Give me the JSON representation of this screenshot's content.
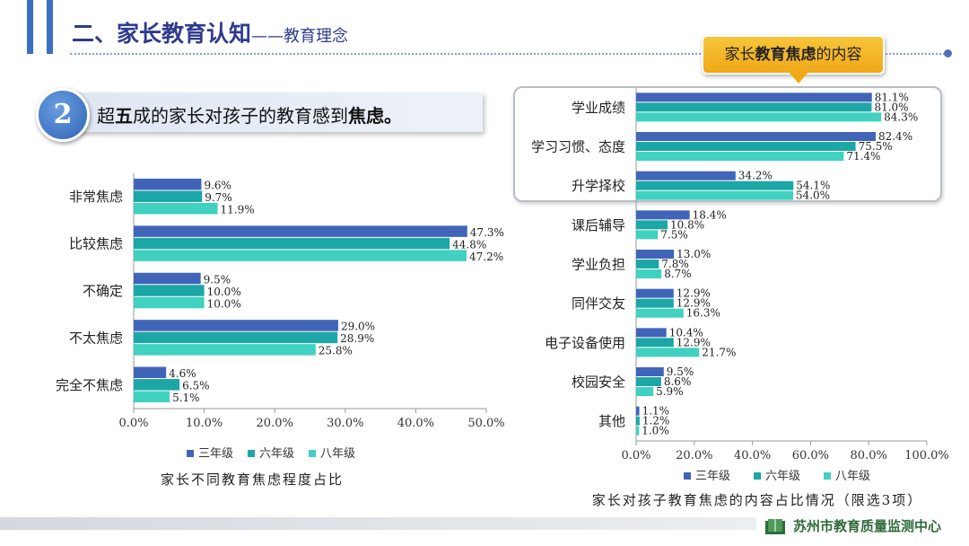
{
  "header": {
    "title_main": "二、家长教育认知",
    "title_sub": "——教育理念"
  },
  "banner": {
    "number": "2",
    "text_pre": "超",
    "text_bold1": "五",
    "text_mid": "成的家长对孩子的教育感到",
    "text_bold2": "焦虑。"
  },
  "callout": {
    "pre": "家长",
    "bold": "教育焦虑",
    "post": "的内容"
  },
  "footer": {
    "logo_text": "苏州市教育质量监测中心"
  },
  "colors": {
    "grade3": "#4064b8",
    "grade6": "#1da6a6",
    "grade8": "#40d1c0",
    "title": "#2f3b8c",
    "callout": "#f0a818"
  },
  "chart_data": [
    {
      "type": "bar",
      "orientation": "horizontal",
      "title": "家长不同教育焦虑程度占比",
      "categories": [
        "非常焦虑",
        "比较焦虑",
        "不确定",
        "不太焦虑",
        "完全不焦虑"
      ],
      "series": [
        {
          "name": "三年级",
          "values": [
            9.6,
            47.3,
            9.5,
            29.0,
            4.6
          ]
        },
        {
          "name": "六年级",
          "values": [
            9.7,
            44.8,
            10.0,
            28.9,
            6.5
          ]
        },
        {
          "name": "八年级",
          "values": [
            11.9,
            47.2,
            10.0,
            25.8,
            5.1
          ]
        }
      ],
      "xlim": [
        0,
        50
      ],
      "xticks": [
        "0.0%",
        "10.0%",
        "20.0%",
        "30.0%",
        "40.0%",
        "50.0%"
      ],
      "legend": "bottom",
      "grid": false
    },
    {
      "type": "bar",
      "orientation": "horizontal",
      "title": "家长对孩子教育焦虑的内容占比情况（限选3项）",
      "categories": [
        "学业成绩",
        "学习习惯、态度",
        "升学择校",
        "课后辅导",
        "学业负担",
        "同伴交友",
        "电子设备使用",
        "校园安全",
        "其他"
      ],
      "series": [
        {
          "name": "三年级",
          "values": [
            81.1,
            82.4,
            34.2,
            18.4,
            13.0,
            12.9,
            10.4,
            9.5,
            1.1
          ]
        },
        {
          "name": "六年级",
          "values": [
            81.0,
            75.5,
            54.1,
            10.8,
            7.8,
            12.9,
            12.9,
            8.6,
            1.2
          ]
        },
        {
          "name": "八年级",
          "values": [
            84.3,
            71.4,
            54.0,
            7.5,
            8.7,
            16.3,
            21.7,
            5.9,
            1.0
          ]
        }
      ],
      "xlim": [
        0,
        100
      ],
      "xticks": [
        "0.0%",
        "20.0%",
        "40.0%",
        "60.0%",
        "80.0%",
        "100.0%"
      ],
      "legend": "bottom",
      "grid": false
    }
  ]
}
